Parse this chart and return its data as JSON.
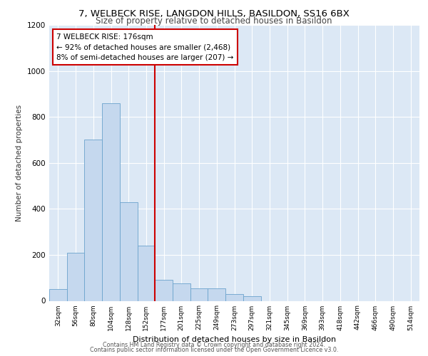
{
  "title_line1": "7, WELBECK RISE, LANGDON HILLS, BASILDON, SS16 6BX",
  "title_line2": "Size of property relative to detached houses in Basildon",
  "xlabel": "Distribution of detached houses by size in Basildon",
  "ylabel": "Number of detached properties",
  "categories": [
    "32sqm",
    "56sqm",
    "80sqm",
    "104sqm",
    "128sqm",
    "152sqm",
    "177sqm",
    "201sqm",
    "225sqm",
    "249sqm",
    "273sqm",
    "297sqm",
    "321sqm",
    "345sqm",
    "369sqm",
    "393sqm",
    "418sqm",
    "442sqm",
    "466sqm",
    "490sqm",
    "514sqm"
  ],
  "values": [
    50,
    210,
    700,
    860,
    430,
    240,
    90,
    75,
    55,
    55,
    30,
    20,
    0,
    0,
    0,
    0,
    0,
    0,
    0,
    0,
    0
  ],
  "bar_color": "#c5d8ee",
  "bar_edge_color": "#6ba3cc",
  "vline_color": "#cc0000",
  "annotation_text": "7 WELBECK RISE: 176sqm\n← 92% of detached houses are smaller (2,468)\n8% of semi-detached houses are larger (207) →",
  "annotation_box_color": "#ffffff",
  "annotation_box_edge_color": "#cc0000",
  "ylim": [
    0,
    1200
  ],
  "yticks": [
    0,
    200,
    400,
    600,
    800,
    1000,
    1200
  ],
  "bg_color": "#dce8f5",
  "footer_line1": "Contains HM Land Registry data © Crown copyright and database right 2024.",
  "footer_line2": "Contains public sector information licensed under the Open Government Licence v3.0."
}
